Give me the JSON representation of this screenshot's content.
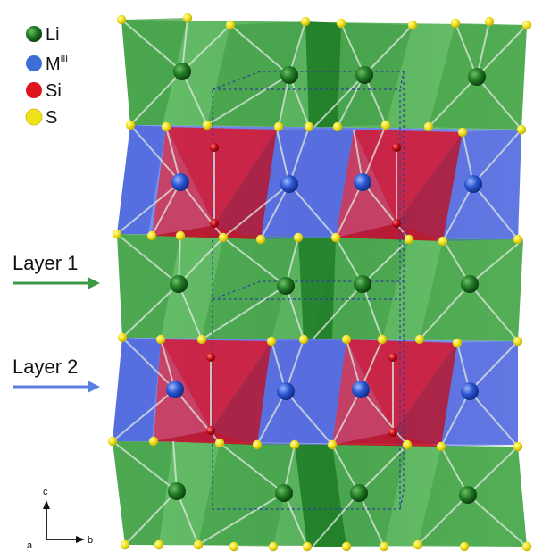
{
  "legend": {
    "items": [
      {
        "label": "Li",
        "color": "#2e5b2a"
      },
      {
        "label": "M",
        "superscript": "III",
        "color": "#3b6fd6"
      },
      {
        "label": "Si",
        "color": "#e0141e"
      },
      {
        "label": "S",
        "color": "#f0e21a"
      }
    ]
  },
  "layers": [
    {
      "label": "Layer 1",
      "arrow_color": "#3e9a45"
    },
    {
      "label": "Layer 2",
      "arrow_color": "#5a7fe0"
    }
  ],
  "axes": {
    "c": "c",
    "a": "a",
    "b": "b"
  },
  "colors": {
    "li_polyhedra": "#3fae45",
    "m_polyhedra": "#5a78e6",
    "si_tetrahedra": "#d8142a",
    "sulfur": "#f2e31b",
    "cell_outline": "#2f3f9e"
  }
}
